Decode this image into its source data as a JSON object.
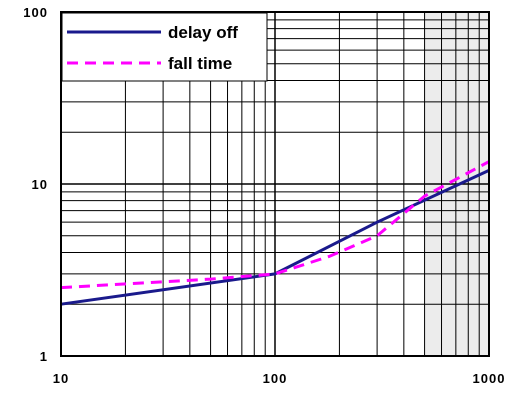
{
  "chart_data": {
    "type": "line",
    "title": "",
    "xlabel": "",
    "ylabel": "",
    "x_scale": "log",
    "y_scale": "log",
    "xlim": [
      10,
      1000
    ],
    "ylim": [
      1,
      100
    ],
    "grid": true,
    "legend_position": "top-left",
    "x_tick_labels": [
      "10",
      "100",
      "1000"
    ],
    "y_tick_labels": [
      "1",
      "10",
      "100"
    ],
    "shaded_band": {
      "x_from": 500,
      "x_to": 1000,
      "color": "#ececec"
    },
    "series": [
      {
        "name": "delay off",
        "color": "#1a1a8c",
        "style": "solid",
        "x": [
          10,
          100,
          300,
          1000
        ],
        "y": [
          2.0,
          3.0,
          6.0,
          12.0
        ]
      },
      {
        "name": "fall time",
        "color": "#ff00ff",
        "style": "dashed",
        "x": [
          10,
          50,
          100,
          180,
          300,
          500,
          1000
        ],
        "y": [
          2.5,
          2.8,
          3.0,
          3.8,
          5.0,
          8.5,
          13.5
        ]
      }
    ]
  }
}
